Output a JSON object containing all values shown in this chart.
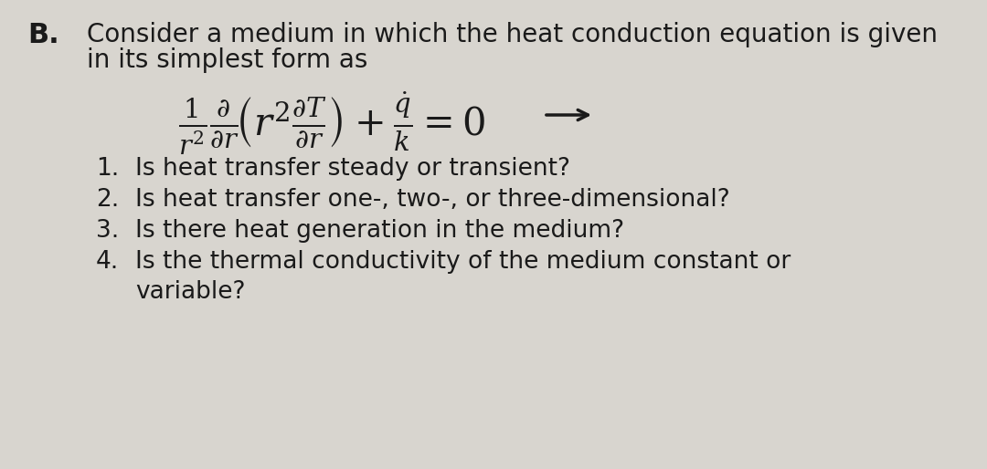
{
  "bg_color": "#d8d5cf",
  "content_bg": "#e8e5e0",
  "text_color": "#1a1a1a",
  "title_b": "B.",
  "line1": "Consider a medium in which the heat conduction equation is given",
  "line2": "in its simplest form as",
  "items": [
    "Is heat transfer steady or transient?",
    "Is heat transfer one-, two-, or three-dimensional?",
    "Is there heat generation in the medium?",
    "Is the thermal conductivity of the medium constant or"
  ],
  "item4_cont": "variable?",
  "font_size_main": 20,
  "font_size_eq": 26,
  "font_size_items": 19,
  "fig_width": 10.8,
  "fig_height": 5.14,
  "dpi": 100
}
